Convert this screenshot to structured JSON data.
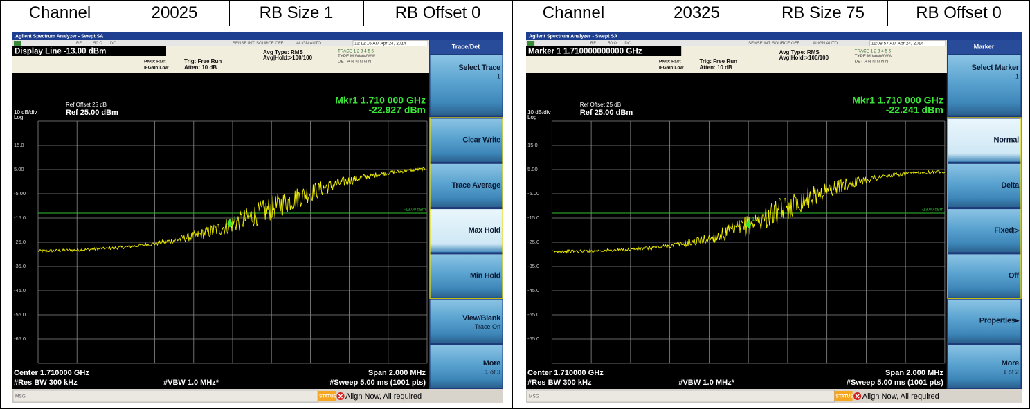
{
  "table": {
    "header": [
      "Channel",
      "20025",
      "RB Size 1",
      "RB Offset 0",
      "Channel",
      "20325",
      "RB Size 75",
      "RB Offset 0"
    ]
  },
  "screens": [
    {
      "window_title": "Agilent Spectrum Analyzer - Swept SA",
      "status_top": [
        "RF",
        "50 Ω",
        "DC",
        "SENSE:INT",
        "SOURCE OFF",
        "ALIGN AUTO"
      ],
      "timestamp": "11:12:16 AM Apr 24, 2014",
      "active_function": "Display Line -13.00 dBm",
      "settings": [
        "PNO: Fast",
        "IFGain:Low",
        "Trig: Free Run",
        "Atten: 10 dB",
        "Avg Type: RMS",
        "Avg|Hold:>100/100"
      ],
      "trace_rows": [
        "TRACE 1 2 3 4 5 6",
        "TYPE M WWWWW",
        "DET A N N N N N"
      ],
      "ref_offset": "Ref Offset 25 dB",
      "scale": "10 dB/div",
      "ref_level": "Ref 25.00 dBm",
      "scale_type": "Log",
      "marker_freq": "Mkr1 1.710 000 GHz",
      "marker_level": "-22.927 dBm",
      "marker_id": "1",
      "y_labels": [
        "15.0",
        "5.00",
        "-5.00",
        "-15.0",
        "-25.0",
        "-35.0",
        "-45.0",
        "-55.0",
        "-65.0"
      ],
      "display_line_label": "-13.00 dBm",
      "footer": {
        "center": "Center 1.710000 GHz",
        "span": "Span 2.000 MHz",
        "rbw": "#Res BW 300 kHz",
        "vbw": "#VBW 1.0 MHz*",
        "sweep": "#Sweep  5.00 ms (1001 pts)"
      },
      "status_bar": {
        "msg": "MSG",
        "status": "STATUS",
        "message": "Align Now, All required"
      },
      "menu": {
        "title": "Trace/Det",
        "keys": [
          {
            "label": "Select Trace",
            "sub": "1"
          },
          {
            "label": "Clear Write"
          },
          {
            "label": "Trace Average"
          },
          {
            "label": "Max Hold",
            "active": true
          },
          {
            "label": "Min Hold"
          },
          {
            "label": "View/Blank",
            "sub": "Trace On"
          },
          {
            "label": "More",
            "sub": "1 of 3"
          }
        ]
      }
    },
    {
      "window_title": "Agilent Spectrum Analyzer - Swept SA",
      "status_top": [
        "RF",
        "50 Ω",
        "DC",
        "SENSE:INT",
        "SOURCE OFF",
        "ALIGN AUTO"
      ],
      "timestamp": "11:08:57 AM Apr 24, 2014",
      "active_function": "Marker 1 1.710000000000 GHz",
      "settings": [
        "PNO: Fast",
        "IFGain:Low",
        "Trig: Free Run",
        "Atten: 10 dB",
        "Avg Type: RMS",
        "Avg|Hold:>100/100"
      ],
      "trace_rows": [
        "TRACE 1 2 3 4 5 6",
        "TYPE M WWWWW",
        "DET A N N N N N"
      ],
      "ref_offset": "Ref Offset 25 dB",
      "scale": "10 dB/div",
      "ref_level": "Ref 25.00 dBm",
      "scale_type": "Log",
      "marker_freq": "Mkr1 1.710 000 GHz",
      "marker_level": "-22.241 dBm",
      "marker_id": "1",
      "y_labels": [
        "15.0",
        "5.00",
        "-5.00",
        "-15.0",
        "-25.0",
        "-35.0",
        "-45.0",
        "-55.0",
        "-65.0"
      ],
      "display_line_label": "-13.00 dBm",
      "footer": {
        "center": "Center 1.710000 GHz",
        "span": "Span 2.000 MHz",
        "rbw": "#Res BW 300 kHz",
        "vbw": "#VBW 1.0 MHz*",
        "sweep": "#Sweep  5.00 ms (1001 pts)"
      },
      "status_bar": {
        "msg": "MSG",
        "status": "STATUS",
        "message": "Align Now, All required"
      },
      "menu": {
        "title": "Marker",
        "keys": [
          {
            "label": "Select Marker",
            "sub": "1"
          },
          {
            "label": "Normal",
            "active": true
          },
          {
            "label": "Delta"
          },
          {
            "label": "Fixed▷"
          },
          {
            "label": "Off"
          },
          {
            "label": "Properties▸"
          },
          {
            "label": "More",
            "sub": "1 of 2"
          }
        ]
      }
    }
  ]
}
